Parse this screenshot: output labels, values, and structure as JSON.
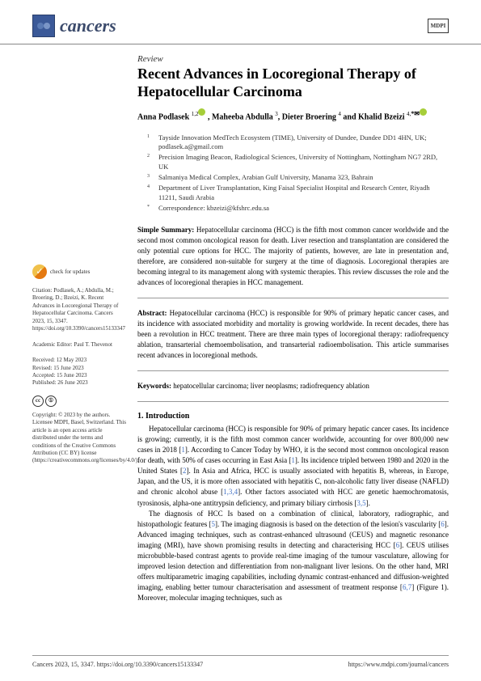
{
  "journal": {
    "name": "cancers",
    "publisher_badge": "MDPI"
  },
  "article": {
    "type": "Review",
    "title": "Recent Advances in Locoregional Therapy of Hepatocellular Carcinoma",
    "authors_html": "Anna Podlasek <sup>1,2</sup> , Maheeba Abdulla <sup>3</sup>, Dieter Broering <sup>4</sup> and Khalid Bzeizi <sup>4,*</sup>"
  },
  "affiliations": [
    {
      "n": "1",
      "text": "Tayside Innovation MedTech Ecosystem (TIME), University of Dundee, Dundee DD1 4HN, UK; podlasek.a@gmail.com"
    },
    {
      "n": "2",
      "text": "Precision Imaging Beacon, Radiological Sciences, University of Nottingham, Nottingham NG7 2RD, UK"
    },
    {
      "n": "3",
      "text": "Salmaniya Medical Complex, Arabian Gulf University, Manama 323, Bahrain"
    },
    {
      "n": "4",
      "text": "Department of Liver Transplantation, King Faisal Specialist Hospital and Research Center, Riyadh 11211, Saudi Arabia"
    },
    {
      "n": "*",
      "text": "Correspondence: kbzeizi@kfshrc.edu.sa"
    }
  ],
  "summary": {
    "label": "Simple Summary:",
    "text": "Hepatocellular carcinoma (HCC) is the fifth most common cancer worldwide and the second most common oncological reason for death. Liver resection and transplantation are considered the only potential cure options for HCC. The majority of patients, however, are late in presentation and, therefore, are considered non-suitable for surgery at the time of diagnosis. Locoregional therapies are becoming integral to its management along with systemic therapies. This review discusses the role and the advances of locoregional therapies in HCC management."
  },
  "abstract": {
    "label": "Abstract:",
    "text": "Hepatocellular carcinoma (HCC) is responsible for 90% of primary hepatic cancer cases, and its incidence with associated morbidity and mortality is growing worldwide. In recent decades, there has been a revolution in HCC treatment. There are three main types of locoregional therapy: radiofrequency ablation, transarterial chemoembolisation, and transarterial radioembolisation. This article summarises recent advances in locoregional methods."
  },
  "keywords": {
    "label": "Keywords:",
    "text": "hepatocellular carcinoma; liver neoplasms; radiofrequency ablation"
  },
  "intro": {
    "heading": "1. Introduction",
    "p1": "Hepatocellular carcinoma (HCC) is responsible for 90% of primary hepatic cancer cases. Its incidence is growing; currently, it is the fifth most common cancer worldwide, accounting for over 800,000 new cases in 2018 [1]. According to Cancer Today by WHO, it is the second most common oncological reason for death, with 50% of cases occurring in East Asia [1]. Its incidence tripled between 1980 and 2020 in the United States [2]. In Asia and Africa, HCC is usually associated with hepatitis B, whereas, in Europe, Japan, and the US, it is more often associated with hepatitis C, non-alcoholic fatty liver disease (NAFLD) and chronic alcohol abuse [1,3,4]. Other factors associated with HCC are genetic haemochromatosis, tyrosinosis, alpha-one antitrypsin deficiency, and primary biliary cirrhosis [3,5].",
    "p2": "The diagnosis of HCC Is based on a combination of clinical, laboratory, radiographic, and histopathologic features [5]. The imaging diagnosis is based on the detection of the lesion's vascularity [6]. Advanced imaging techniques, such as contrast-enhanced ultrasound (CEUS) and magnetic resonance imaging (MRI), have shown promising results in detecting and characterising HCC [6]. CEUS utilises microbubble-based contrast agents to provide real-time imaging of the tumour vasculature, allowing for improved lesion detection and differentiation from non-malignant liver lesions. On the other hand, MRI offers multiparametric imaging capabilities, including dynamic contrast-enhanced and diffusion-weighted imaging, enabling better tumour characterisation and assessment of treatment response [6,7] (Figure 1). Moreover, molecular imaging techniques, such as"
  },
  "sidebar": {
    "check_updates": "check for updates",
    "citation": "Citation: Podlasek, A.; Abdulla, M.; Broering, D.; Bzeizi, K. Recent Advances in Locoregional Therapy of Hepatocellular Carcinoma. Cancers 2023, 15, 3347. https://doi.org/10.3390/cancers15133347",
    "editor": "Academic Editor: Paul T. Thevenot",
    "received": "Received: 12 May 2023",
    "revised": "Revised: 15 June 2023",
    "accepted": "Accepted: 15 June 2023",
    "published": "Published: 26 June 2023",
    "copyright": "Copyright: © 2023 by the authors. Licensee MDPI, Basel, Switzerland. This article is an open access article distributed under the terms and conditions of the Creative Commons Attribution (CC BY) license (https://creativecommons.org/licenses/by/4.0/)."
  },
  "footer": {
    "left": "Cancers 2023, 15, 3347. https://doi.org/10.3390/cancers15133347",
    "right": "https://www.mdpi.com/journal/cancers"
  }
}
